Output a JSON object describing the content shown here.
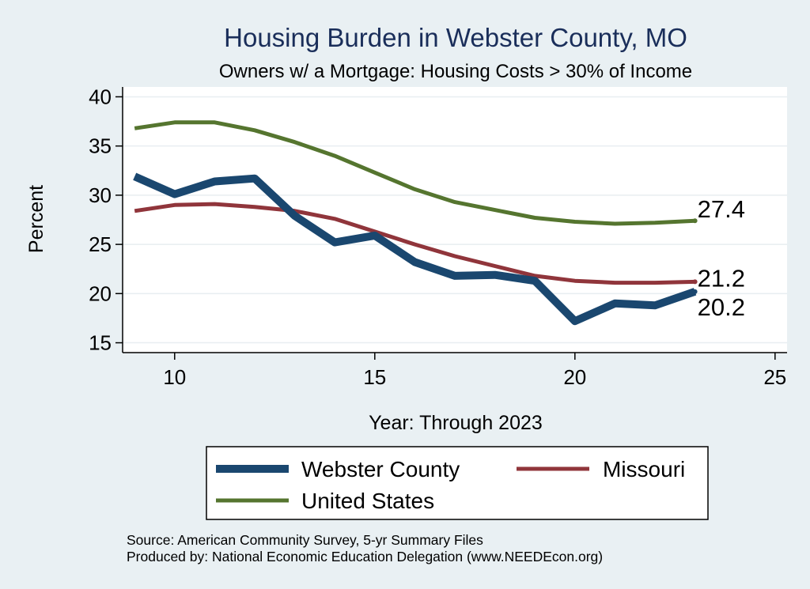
{
  "chart_data": {
    "type": "line",
    "title": "Housing Burden in Webster County, MO",
    "subtitle": "Owners w/ a Mortgage: Housing Costs > 30% of Income",
    "xlabel": "Year: Through 2023",
    "ylabel": "Percent",
    "xlim": [
      8.7,
      25.3
    ],
    "ylim": [
      14,
      41
    ],
    "x_ticks": [
      10,
      15,
      20,
      25
    ],
    "y_ticks": [
      15,
      20,
      25,
      30,
      35,
      40
    ],
    "grid": true,
    "legend_position": "bottom",
    "x": [
      9,
      10,
      11,
      12,
      13,
      14,
      15,
      16,
      17,
      18,
      19,
      20,
      21,
      22,
      23
    ],
    "series": [
      {
        "name": "Webster County",
        "color": "#1a476f",
        "values": [
          31.9,
          30.1,
          31.4,
          31.7,
          27.9,
          25.2,
          25.9,
          23.2,
          21.8,
          21.9,
          21.3,
          17.2,
          19.0,
          18.8,
          20.2
        ],
        "end_label": "20.2"
      },
      {
        "name": "Missouri",
        "color": "#90353b",
        "values": [
          28.4,
          29.0,
          29.1,
          28.8,
          28.4,
          27.6,
          26.3,
          25.0,
          23.8,
          22.8,
          21.8,
          21.3,
          21.1,
          21.1,
          21.2
        ],
        "end_label": "21.2"
      },
      {
        "name": "United States",
        "color": "#55752f",
        "values": [
          36.8,
          37.4,
          37.4,
          36.6,
          35.4,
          34.0,
          32.3,
          30.6,
          29.3,
          28.5,
          27.7,
          27.3,
          27.1,
          27.2,
          27.4
        ],
        "end_label": "27.4"
      }
    ],
    "source_lines": [
      "Source: American Community Survey, 5-yr Summary Files",
      "Produced by: National Economic Education Delegation (www.NEEDEcon.org)"
    ]
  }
}
